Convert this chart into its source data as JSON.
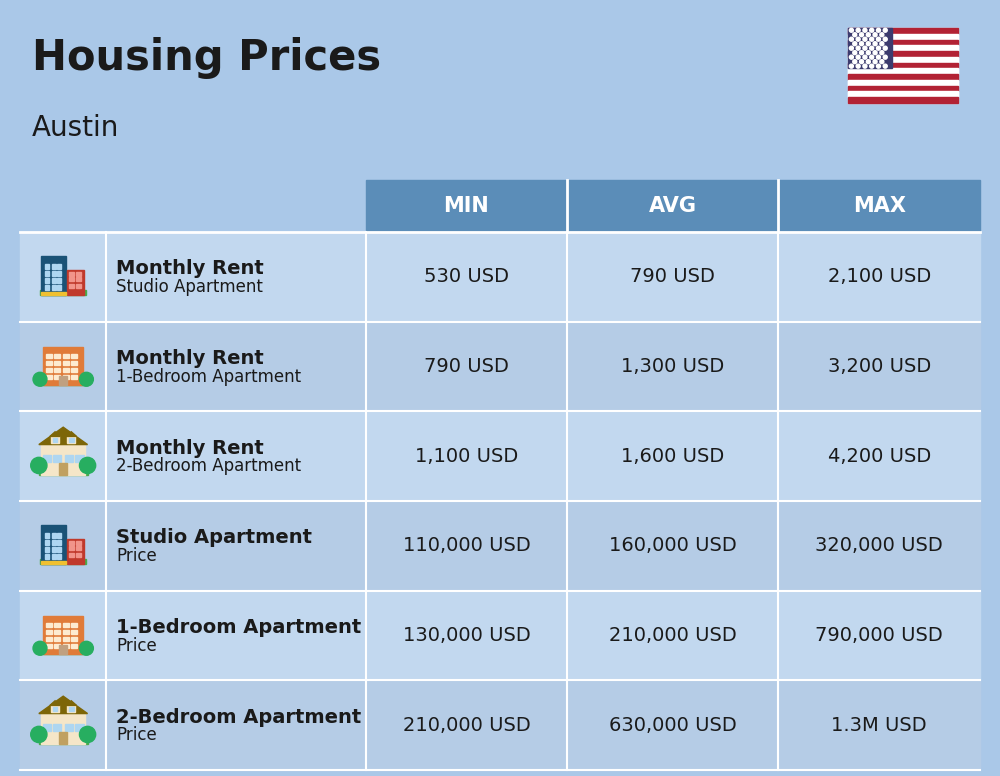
{
  "title": "Housing Prices",
  "subtitle": "Austin",
  "background_color": "#aac8e8",
  "header_bg_color": "#5b8db8",
  "header_text_color": "#ffffff",
  "row_bg_even": "#c2d8ef",
  "row_bg_odd": "#b5cce6",
  "text_color": "#1a1a1a",
  "col_headers": [
    "MIN",
    "AVG",
    "MAX"
  ],
  "rows": [
    {
      "label_bold": "Monthly Rent",
      "label_sub": "Studio Apartment",
      "min": "530 USD",
      "avg": "790 USD",
      "max": "2,100 USD",
      "icon_type": "blue_red_building"
    },
    {
      "label_bold": "Monthly Rent",
      "label_sub": "1-Bedroom Apartment",
      "min": "790 USD",
      "avg": "1,300 USD",
      "max": "3,200 USD",
      "icon_type": "orange_building"
    },
    {
      "label_bold": "Monthly Rent",
      "label_sub": "2-Bedroom Apartment",
      "min": "1,100 USD",
      "avg": "1,600 USD",
      "max": "4,200 USD",
      "icon_type": "beige_house"
    },
    {
      "label_bold": "Studio Apartment",
      "label_sub": "Price",
      "min": "110,000 USD",
      "avg": "160,000 USD",
      "max": "320,000 USD",
      "icon_type": "blue_red_building"
    },
    {
      "label_bold": "1-Bedroom Apartment",
      "label_sub": "Price",
      "min": "130,000 USD",
      "avg": "210,000 USD",
      "max": "790,000 USD",
      "icon_type": "orange_building"
    },
    {
      "label_bold": "2-Bedroom Apartment",
      "label_sub": "Price",
      "min": "210,000 USD",
      "avg": "630,000 USD",
      "max": "1.3M USD",
      "icon_type": "beige_house"
    }
  ],
  "title_fontsize": 30,
  "subtitle_fontsize": 20,
  "header_fontsize": 15,
  "cell_fontsize": 14,
  "label_bold_fontsize": 14,
  "label_sub_fontsize": 12
}
